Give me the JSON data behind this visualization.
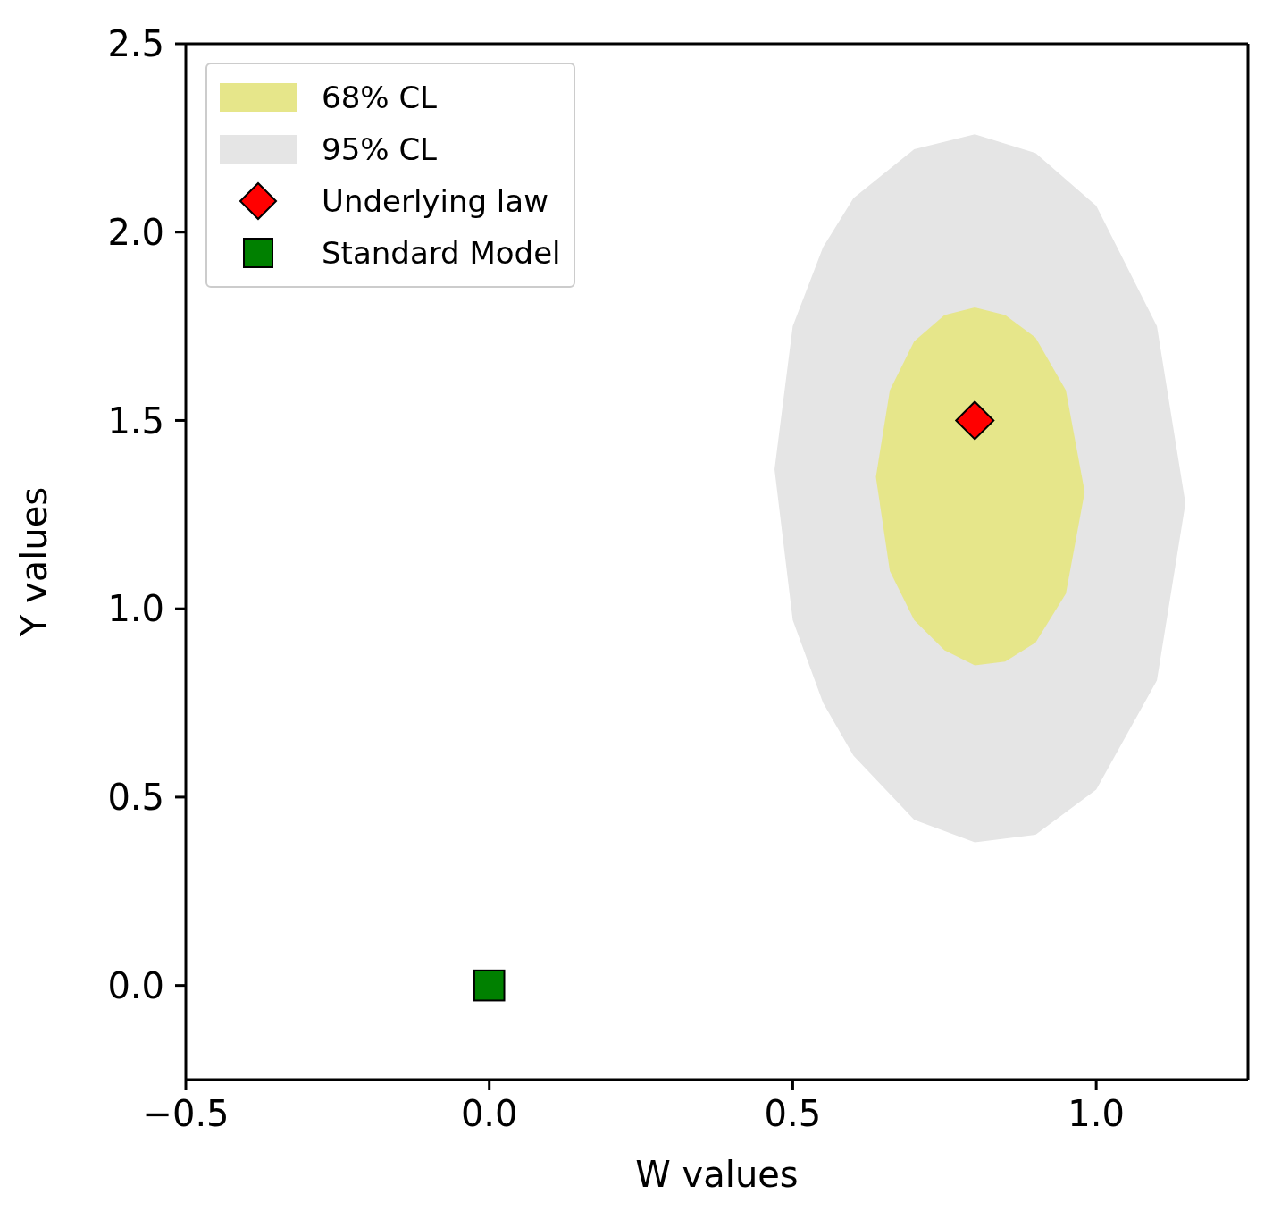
{
  "chart_data": {
    "type": "scatter",
    "xlabel": "W values",
    "ylabel": "Y values",
    "xlim": [
      -0.5,
      1.25
    ],
    "xticks": [
      {
        "value": -0.5,
        "label": "−0.5"
      },
      {
        "value": 0,
        "label": "0.0"
      },
      {
        "value": 0.5,
        "label": "0.5"
      },
      {
        "value": 1,
        "label": "1.0"
      }
    ],
    "ylim": [
      -0.25,
      2.5
    ],
    "yticks": [
      {
        "value": 0,
        "label": "0.0"
      },
      {
        "value": 0.5,
        "label": "0.5"
      },
      {
        "value": 1,
        "label": "1.0"
      },
      {
        "value": 1.5,
        "label": "1.5"
      },
      {
        "value": 2,
        "label": "2.0"
      },
      {
        "value": 2.5,
        "label": "2.5"
      }
    ],
    "grid": false,
    "legend": "top left",
    "series": [
      {
        "name": "68% CL",
        "type": "area",
        "color": "#e6e68a",
        "x": [
          0.637,
          0.66,
          0.7,
          0.75,
          0.8,
          0.85,
          0.9,
          0.95,
          0.981,
          0.95,
          0.9,
          0.85,
          0.8,
          0.75,
          0.7,
          0.66,
          0.637
        ],
        "values": [
          1.35,
          1.58,
          1.71,
          1.78,
          1.8,
          1.78,
          1.72,
          1.58,
          1.31,
          1.04,
          0.91,
          0.86,
          0.85,
          0.89,
          0.97,
          1.1,
          1.35
        ]
      },
      {
        "name": "95% CL",
        "type": "area",
        "color": "#e5e5e5",
        "x": [
          0.47,
          0.5,
          0.55,
          0.6,
          0.7,
          0.8,
          0.9,
          1.0,
          1.1,
          1.147,
          1.1,
          1.0,
          0.9,
          0.8,
          0.7,
          0.6,
          0.55,
          0.5,
          0.47
        ],
        "values": [
          1.37,
          1.75,
          1.96,
          2.09,
          2.22,
          2.26,
          2.21,
          2.07,
          1.75,
          1.28,
          0.81,
          0.52,
          0.4,
          0.38,
          0.44,
          0.61,
          0.75,
          0.97,
          1.37
        ]
      },
      {
        "name": "Underlying law",
        "marker": "diamond",
        "color": "#ff0000",
        "x": [
          0.8
        ],
        "values": [
          1.5
        ]
      },
      {
        "name": "Standard Model",
        "marker": "square",
        "color": "#008000",
        "x": [
          0
        ],
        "values": [
          0
        ]
      }
    ]
  }
}
